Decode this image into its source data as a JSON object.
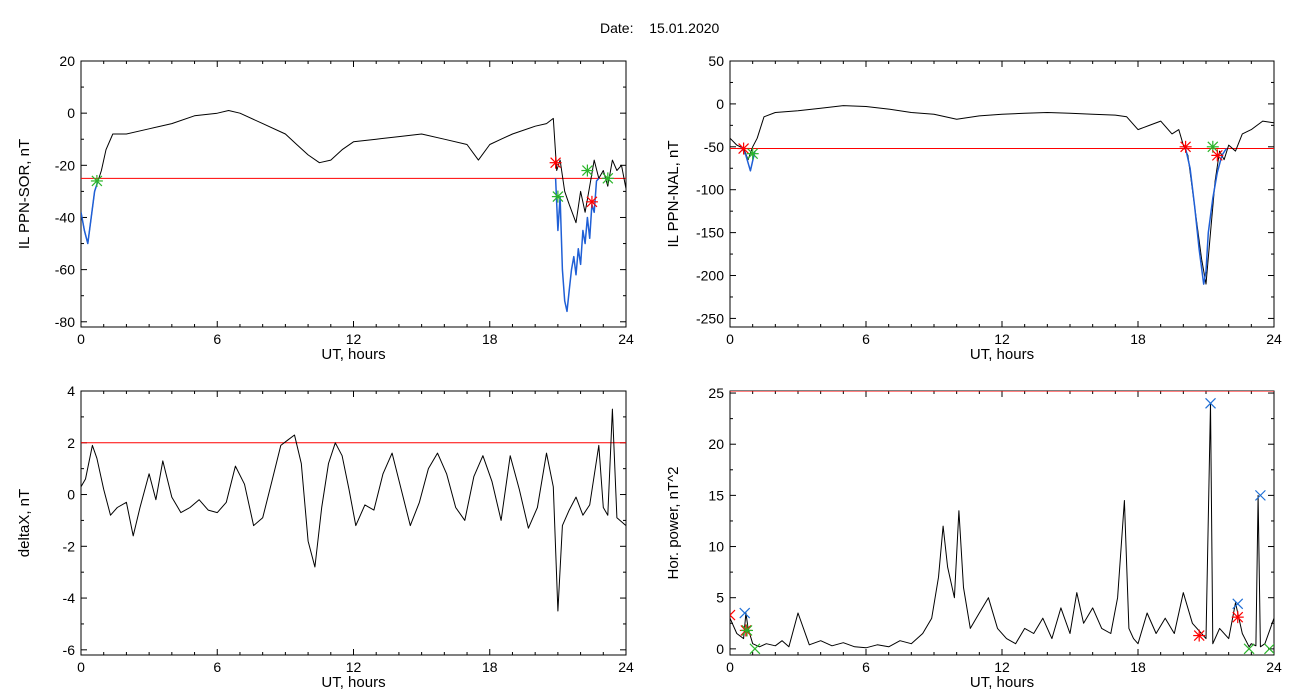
{
  "header": {
    "date_label": "Date:",
    "date_value": "15.01.2020"
  },
  "colors": {
    "axis": "#000000",
    "trace": "#000000",
    "threshold": "#ff0000",
    "segment": "#1f5fd6",
    "marker_red": "#ff0000",
    "marker_green": "#2bb52b",
    "marker_blue": "#1f6fd6"
  },
  "chart_data": [
    {
      "type": "line",
      "id": "sor",
      "xlabel": "UT, hours",
      "ylabel": "IL PPN-SOR, nT",
      "xlim": [
        0,
        24
      ],
      "ylim": [
        -82,
        20
      ],
      "xticks": [
        0,
        6,
        12,
        18,
        24
      ],
      "xtick_labels": [
        "0",
        "6",
        "12",
        "18",
        "24"
      ],
      "yticks": [
        20,
        0,
        -20,
        -40,
        -60,
        -80
      ],
      "ytick_labels": [
        "20",
        "0",
        "-20",
        "-40",
        "-60",
        "-80"
      ],
      "threshold": -25,
      "series": [
        {
          "role": "trace",
          "x": [
            0,
            0.15,
            0.3,
            0.45,
            0.6,
            0.75,
            0.9,
            1.1,
            1.4,
            2,
            3,
            4,
            5,
            6,
            6.5,
            7,
            8,
            9,
            9.5,
            10,
            10.5,
            11,
            11.5,
            12,
            13,
            14,
            15,
            16,
            17,
            17.5,
            18,
            18.5,
            19,
            20,
            20.5,
            20.8,
            20.95,
            21.1,
            21.3,
            21.5,
            21.8,
            22,
            22.2,
            22.4,
            22.6,
            22.8,
            23,
            23.2,
            23.4,
            23.6,
            23.8,
            24
          ],
          "y": [
            -38,
            -45,
            -50,
            -40,
            -30,
            -26,
            -22,
            -14,
            -8,
            -8,
            -6,
            -4,
            -1,
            0,
            1,
            0,
            -4,
            -8,
            -12,
            -16,
            -19,
            -18,
            -14,
            -11,
            -10,
            -9,
            -8,
            -10,
            -12,
            -18,
            -12,
            -10,
            -8,
            -5,
            -4,
            -2,
            -22,
            -18,
            -30,
            -35,
            -42,
            -30,
            -38,
            -28,
            -18,
            -25,
            -22,
            -28,
            -18,
            -22,
            -20,
            -29
          ]
        },
        {
          "role": "segment",
          "x": [
            0,
            0.15,
            0.3,
            0.45,
            0.6,
            0.75
          ],
          "y": [
            -38,
            -45,
            -50,
            -40,
            -30,
            -26
          ]
        },
        {
          "role": "segment",
          "x": [
            20.9,
            21,
            21.1,
            21.2,
            21.3,
            21.4,
            21.5,
            21.6,
            21.7,
            21.8,
            21.9,
            22,
            22.1,
            22.2,
            22.3,
            22.4,
            22.5,
            22.6,
            22.7,
            22.8
          ],
          "y": [
            -25,
            -45,
            -32,
            -60,
            -72,
            -76,
            -68,
            -60,
            -55,
            -62,
            -52,
            -58,
            -45,
            -50,
            -40,
            -48,
            -35,
            -38,
            -26,
            -25
          ]
        }
      ],
      "markers": [
        {
          "x": 0.7,
          "y": -26,
          "color": "green",
          "shape": "star"
        },
        {
          "x": 20.9,
          "y": -19,
          "color": "red",
          "shape": "star"
        },
        {
          "x": 21.0,
          "y": -32,
          "color": "green",
          "shape": "star"
        },
        {
          "x": 22.3,
          "y": -22,
          "color": "green",
          "shape": "star"
        },
        {
          "x": 22.5,
          "y": -34,
          "color": "red",
          "shape": "star"
        },
        {
          "x": 23.2,
          "y": -25,
          "color": "green",
          "shape": "star"
        }
      ]
    },
    {
      "type": "line",
      "id": "nal",
      "xlabel": "UT, hours",
      "ylabel": "IL PPN-NAL, nT",
      "xlim": [
        0,
        24
      ],
      "ylim": [
        -260,
        50
      ],
      "xticks": [
        0,
        6,
        12,
        18,
        24
      ],
      "xtick_labels": [
        "0",
        "6",
        "12",
        "18",
        "24"
      ],
      "yticks": [
        50,
        0,
        -50,
        -100,
        -150,
        -200,
        -250
      ],
      "ytick_labels": [
        "50",
        "0",
        "-50",
        "-100",
        "-150",
        "-200",
        "-250"
      ],
      "threshold": -52,
      "series": [
        {
          "role": "trace",
          "x": [
            0,
            0.3,
            0.6,
            0.8,
            1,
            1.2,
            1.5,
            2,
            3,
            4,
            5,
            6,
            7,
            8,
            9,
            10,
            11,
            12,
            13,
            14,
            15,
            16,
            17,
            17.5,
            18,
            18.5,
            19,
            19.5,
            19.8,
            20,
            20.2,
            20.5,
            20.8,
            21,
            21.2,
            21.4,
            21.6,
            21.8,
            22,
            22.3,
            22.6,
            23,
            23.5,
            24
          ],
          "y": [
            -40,
            -48,
            -52,
            -65,
            -50,
            -40,
            -15,
            -10,
            -8,
            -5,
            -2,
            -3,
            -6,
            -10,
            -12,
            -18,
            -14,
            -12,
            -11,
            -10,
            -11,
            -12,
            -13,
            -15,
            -30,
            -25,
            -20,
            -35,
            -30,
            -48,
            -60,
            -120,
            -180,
            -210,
            -150,
            -90,
            -55,
            -65,
            -48,
            -55,
            -35,
            -30,
            -20,
            -22
          ]
        },
        {
          "role": "segment",
          "x": [
            0.5,
            0.7,
            0.9,
            1.1
          ],
          "y": [
            -50,
            -60,
            -78,
            -55
          ]
        },
        {
          "role": "segment",
          "x": [
            20.1,
            20.3,
            20.5,
            20.7,
            20.9,
            21,
            21.1,
            21.3,
            21.5,
            21.7,
            21.9
          ],
          "y": [
            -52,
            -75,
            -120,
            -170,
            -210,
            -195,
            -150,
            -110,
            -80,
            -60,
            -52
          ]
        }
      ],
      "markers": [
        {
          "x": 0.6,
          "y": -52,
          "color": "red",
          "shape": "star"
        },
        {
          "x": 1.0,
          "y": -58,
          "color": "green",
          "shape": "star"
        },
        {
          "x": 20.1,
          "y": -50,
          "color": "red",
          "shape": "star"
        },
        {
          "x": 21.3,
          "y": -50,
          "color": "green",
          "shape": "star"
        },
        {
          "x": 21.5,
          "y": -60,
          "color": "red",
          "shape": "star"
        }
      ]
    },
    {
      "type": "line",
      "id": "deltax",
      "xlabel": "UT, hours",
      "ylabel": "deltaX, nT",
      "xlim": [
        0,
        24
      ],
      "ylim": [
        -6.2,
        4
      ],
      "xticks": [
        0,
        6,
        12,
        18,
        24
      ],
      "xtick_labels": [
        "0",
        "6",
        "12",
        "18",
        "24"
      ],
      "yticks": [
        4,
        2,
        0,
        -2,
        -4,
        -6
      ],
      "ytick_labels": [
        "4",
        "2",
        "0",
        "-2",
        "-4",
        "-6"
      ],
      "threshold": 2,
      "series": [
        {
          "role": "trace",
          "x": [
            0,
            0.2,
            0.5,
            0.7,
            1,
            1.3,
            1.6,
            2,
            2.3,
            2.6,
            3,
            3.3,
            3.6,
            4,
            4.4,
            4.8,
            5.2,
            5.6,
            6,
            6.4,
            6.8,
            7.2,
            7.6,
            8,
            8.4,
            8.8,
            9.1,
            9.4,
            9.7,
            10,
            10.3,
            10.6,
            10.9,
            11.2,
            11.5,
            11.8,
            12.1,
            12.5,
            12.9,
            13.3,
            13.7,
            14.1,
            14.5,
            14.9,
            15.3,
            15.7,
            16.1,
            16.5,
            16.9,
            17.3,
            17.7,
            18.1,
            18.5,
            18.9,
            19.3,
            19.7,
            20.1,
            20.5,
            20.8,
            21,
            21.2,
            21.5,
            21.8,
            22.1,
            22.4,
            22.8,
            23,
            23.2,
            23.4,
            23.6,
            24
          ],
          "y": [
            0.3,
            0.6,
            1.9,
            1.4,
            0.2,
            -0.8,
            -0.5,
            -0.3,
            -1.6,
            -0.5,
            0.8,
            -0.2,
            1.3,
            -0.1,
            -0.7,
            -0.5,
            -0.2,
            -0.6,
            -0.7,
            -0.3,
            1.1,
            0.4,
            -1.2,
            -0.9,
            0.5,
            1.9,
            2.1,
            2.3,
            1.2,
            -1.8,
            -2.8,
            -0.5,
            1.2,
            2.0,
            1.5,
            0.2,
            -1.2,
            -0.4,
            -0.6,
            0.8,
            1.6,
            0.2,
            -1.2,
            -0.3,
            1.0,
            1.6,
            0.8,
            -0.5,
            -1.0,
            0.7,
            1.5,
            0.5,
            -1.0,
            1.5,
            0.2,
            -1.3,
            -0.5,
            1.6,
            0.3,
            -4.5,
            -1.2,
            -0.6,
            -0.1,
            -0.8,
            -0.4,
            1.9,
            -0.5,
            -0.8,
            3.3,
            -0.9,
            -1.2
          ]
        }
      ],
      "markers": []
    },
    {
      "type": "line",
      "id": "power",
      "xlabel": "UT, hours",
      "ylabel": "Hor. power, nT^2",
      "xlim": [
        0,
        24
      ],
      "ylim": [
        -0.6,
        25.2
      ],
      "xticks": [
        0,
        6,
        12,
        18,
        24
      ],
      "xtick_labels": [
        "0",
        "6",
        "12",
        "18",
        "24"
      ],
      "yticks": [
        25,
        20,
        15,
        10,
        5,
        0
      ],
      "ytick_labels": [
        "25",
        "20",
        "15",
        "10",
        "5",
        "0"
      ],
      "threshold": 25.2,
      "series": [
        {
          "role": "trace",
          "x": [
            0,
            0.3,
            0.6,
            0.7,
            0.8,
            1,
            1.3,
            1.6,
            2,
            2.3,
            2.6,
            3,
            3.5,
            4,
            4.5,
            5,
            5.5,
            6,
            6.5,
            7,
            7.5,
            8,
            8.5,
            8.9,
            9.2,
            9.4,
            9.6,
            9.9,
            10.1,
            10.3,
            10.6,
            11,
            11.4,
            11.8,
            12.2,
            12.6,
            13,
            13.4,
            13.8,
            14.2,
            14.6,
            15,
            15.3,
            15.6,
            16,
            16.4,
            16.8,
            17.1,
            17.4,
            17.6,
            17.8,
            18,
            18.4,
            18.8,
            19.2,
            19.6,
            20,
            20.4,
            20.8,
            21,
            21.2,
            21.3,
            21.6,
            22,
            22.3,
            22.6,
            22.9,
            23,
            23.2,
            23.3,
            23.4,
            23.6,
            24
          ],
          "y": [
            3,
            1.5,
            1,
            3.5,
            2,
            0.5,
            0.2,
            0.5,
            0.3,
            0.8,
            0.2,
            3.5,
            0.4,
            0.8,
            0.3,
            0.6,
            0.2,
            0.1,
            0.4,
            0.2,
            0.8,
            0.5,
            1.5,
            3.0,
            7.0,
            12.0,
            8.0,
            5.0,
            13.5,
            6.0,
            2.0,
            3.5,
            5.0,
            2.0,
            1.0,
            0.5,
            2.0,
            1.5,
            3.0,
            1.0,
            4.0,
            1.5,
            5.5,
            2.5,
            4.0,
            2.0,
            1.5,
            5.0,
            14.5,
            2.0,
            1.0,
            0.5,
            3.5,
            1.5,
            3.0,
            1.5,
            5.5,
            2.5,
            1.5,
            1.0,
            24.0,
            0.5,
            2.0,
            1.0,
            4.5,
            1.5,
            0.2,
            0.5,
            0.3,
            15.0,
            0.2,
            0.5,
            3.0
          ]
        }
      ],
      "markers": [
        {
          "x": 0.0,
          "y": 3.3,
          "color": "red",
          "shape": "x"
        },
        {
          "x": 0.65,
          "y": 3.5,
          "color": "blue",
          "shape": "x"
        },
        {
          "x": 0.7,
          "y": 1.8,
          "color": "red",
          "shape": "star"
        },
        {
          "x": 0.75,
          "y": 1.8,
          "color": "green",
          "shape": "star"
        },
        {
          "x": 1.1,
          "y": 0.0,
          "color": "green",
          "shape": "x"
        },
        {
          "x": 20.7,
          "y": 1.3,
          "color": "red",
          "shape": "star"
        },
        {
          "x": 21.2,
          "y": 24.0,
          "color": "blue",
          "shape": "x"
        },
        {
          "x": 22.4,
          "y": 4.4,
          "color": "blue",
          "shape": "x"
        },
        {
          "x": 22.4,
          "y": 3.1,
          "color": "red",
          "shape": "star"
        },
        {
          "x": 22.9,
          "y": 0.0,
          "color": "green",
          "shape": "x"
        },
        {
          "x": 23.4,
          "y": 15.0,
          "color": "blue",
          "shape": "x"
        },
        {
          "x": 23.8,
          "y": 0.0,
          "color": "green",
          "shape": "x"
        }
      ]
    }
  ]
}
